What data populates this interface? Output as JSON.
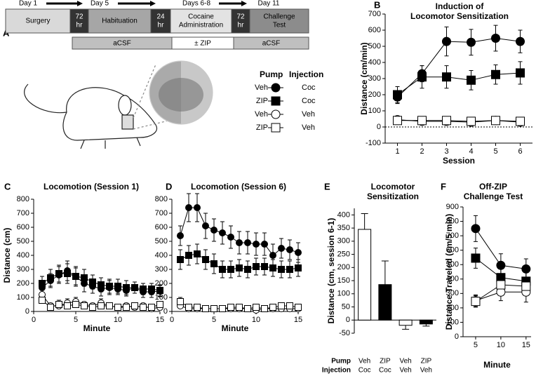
{
  "panel_a": {
    "panel": "A",
    "days": [
      "Day 1",
      "Day 5",
      "Days 6-8",
      "Day 11"
    ],
    "timeline": [
      [
        "Surgery"
      ],
      [
        "72",
        "hr"
      ],
      [
        "Habituation"
      ],
      [
        "24",
        "hr"
      ],
      [
        "Cocaine",
        "Administration"
      ],
      [
        "72",
        "hr"
      ],
      [
        "Challenge",
        "Test"
      ]
    ],
    "infusion": [
      "aCSF",
      "± ZIP",
      "aCSF"
    ]
  },
  "legend": {
    "headers": [
      "Pump",
      "Injection"
    ],
    "entries": [
      {
        "pump": "Veh",
        "injection": "Coc",
        "marker": "circle",
        "color": "#000000"
      },
      {
        "pump": "ZIP",
        "injection": "Coc",
        "marker": "square",
        "color": "#000000"
      },
      {
        "pump": "Veh",
        "injection": "Veh",
        "marker": "circle",
        "color": "#ffffff"
      },
      {
        "pump": "ZIP",
        "injection": "Veh",
        "marker": "square",
        "color": "#ffffff"
      }
    ]
  },
  "chart_data": [
    {
      "type": "line",
      "panel": "B",
      "title": [
        "Induction of",
        "Locomotor Sensitization"
      ],
      "ylabel": "Distance (cm/min)",
      "xlabel": "Session",
      "x": [
        1,
        2,
        3,
        4,
        5,
        6
      ],
      "xlim": [
        0.5,
        6.5
      ],
      "xticks": [
        1,
        2,
        3,
        4,
        5,
        6
      ],
      "ylim": [
        -100,
        700
      ],
      "yticks": [
        -100,
        0,
        100,
        200,
        300,
        400,
        500,
        600,
        700
      ],
      "reference_line": 0,
      "series": [
        {
          "marker": "circle",
          "color": "#000000",
          "values": [
            185,
            330,
            530,
            525,
            550,
            530
          ],
          "errors": [
            40,
            50,
            90,
            80,
            80,
            70
          ]
        },
        {
          "marker": "square",
          "color": "#000000",
          "values": [
            200,
            310,
            310,
            290,
            325,
            335
          ],
          "errors": [
            50,
            70,
            70,
            60,
            60,
            70
          ]
        },
        {
          "marker": "circle",
          "color": "#ffffff",
          "values": [
            45,
            35,
            35,
            30,
            40,
            30
          ],
          "errors": [
            20,
            20,
            20,
            20,
            20,
            20
          ]
        },
        {
          "marker": "square",
          "color": "#ffffff",
          "values": [
            40,
            40,
            40,
            35,
            40,
            35
          ],
          "errors": [
            20,
            20,
            20,
            20,
            20,
            20
          ]
        }
      ]
    },
    {
      "type": "line",
      "panel": "C",
      "title": [
        "Locomotion (Session 1)"
      ],
      "ylabel": "Distance (cm)",
      "xlabel": "Minute",
      "x": [
        1,
        2,
        3,
        4,
        5,
        6,
        7,
        8,
        9,
        10,
        11,
        12,
        13,
        14,
        15
      ],
      "xlim": [
        0,
        15
      ],
      "xticks": [
        0,
        5,
        10,
        15
      ],
      "ylim": [
        0,
        800
      ],
      "yticks": [
        0,
        100,
        200,
        300,
        400,
        500,
        600,
        700,
        800
      ],
      "series": [
        {
          "marker": "circle",
          "color": "#000000",
          "values": [
            170,
            220,
            260,
            290,
            250,
            200,
            180,
            160,
            170,
            160,
            150,
            170,
            140,
            140,
            145
          ],
          "errors": [
            40,
            50,
            60,
            70,
            70,
            60,
            50,
            50,
            50,
            40,
            40,
            40,
            40,
            40,
            40
          ]
        },
        {
          "marker": "square",
          "color": "#000000",
          "values": [
            200,
            240,
            270,
            270,
            250,
            240,
            210,
            190,
            180,
            180,
            170,
            170,
            160,
            160,
            150
          ],
          "errors": [
            50,
            60,
            60,
            70,
            60,
            60,
            50,
            50,
            50,
            50,
            50,
            40,
            40,
            40,
            40
          ]
        },
        {
          "marker": "circle",
          "color": "#ffffff",
          "values": [
            120,
            40,
            40,
            60,
            70,
            50,
            40,
            60,
            40,
            30,
            40,
            30,
            40,
            20,
            30
          ],
          "errors": [
            30,
            20,
            20,
            30,
            30,
            20,
            20,
            30,
            20,
            20,
            20,
            20,
            20,
            20,
            20
          ]
        },
        {
          "marker": "square",
          "color": "#ffffff",
          "values": [
            80,
            30,
            50,
            40,
            50,
            40,
            30,
            40,
            40,
            30,
            30,
            40,
            30,
            30,
            50
          ],
          "errors": [
            20,
            20,
            30,
            20,
            20,
            20,
            20,
            20,
            20,
            20,
            20,
            20,
            20,
            20,
            20
          ]
        }
      ]
    },
    {
      "type": "line",
      "panel": "D",
      "title": [
        "Locomotion (Session 6)"
      ],
      "xlabel": "Minute",
      "x": [
        1,
        2,
        3,
        4,
        5,
        6,
        7,
        8,
        9,
        10,
        11,
        12,
        13,
        14,
        15
      ],
      "xlim": [
        0,
        15
      ],
      "xticks": [
        0,
        5,
        10,
        15
      ],
      "ylim": [
        0,
        800
      ],
      "yticks": [
        0,
        100,
        200,
        300,
        400,
        500,
        600,
        700,
        800
      ],
      "series": [
        {
          "marker": "circle",
          "color": "#000000",
          "values": [
            540,
            740,
            740,
            610,
            580,
            560,
            530,
            490,
            490,
            480,
            480,
            400,
            450,
            440,
            420
          ],
          "errors": [
            70,
            100,
            100,
            90,
            80,
            80,
            80,
            80,
            80,
            80,
            80,
            80,
            70,
            70,
            70
          ]
        },
        {
          "marker": "square",
          "color": "#000000",
          "values": [
            370,
            400,
            410,
            370,
            340,
            300,
            300,
            310,
            300,
            320,
            320,
            310,
            300,
            300,
            310
          ],
          "errors": [
            70,
            70,
            70,
            70,
            70,
            60,
            60,
            60,
            60,
            60,
            60,
            60,
            60,
            60,
            60
          ]
        },
        {
          "marker": "circle",
          "color": "#ffffff",
          "values": [
            40,
            20,
            20,
            20,
            20,
            20,
            20,
            20,
            20,
            10,
            20,
            20,
            20,
            20,
            20
          ],
          "errors": [
            15,
            15,
            15,
            15,
            15,
            15,
            15,
            15,
            15,
            15,
            15,
            15,
            15,
            15,
            15
          ]
        },
        {
          "marker": "square",
          "color": "#ffffff",
          "values": [
            70,
            30,
            30,
            20,
            20,
            20,
            30,
            30,
            20,
            30,
            20,
            30,
            40,
            40,
            30
          ],
          "errors": [
            30,
            20,
            20,
            20,
            20,
            20,
            20,
            20,
            20,
            20,
            20,
            20,
            20,
            20,
            20
          ]
        }
      ]
    },
    {
      "type": "bar",
      "panel": "E",
      "title": [
        "Locomotor",
        "Sensitization"
      ],
      "ylabel": "Distance (cm, session 6-1)",
      "category_rows": [
        "Pump",
        "Injection"
      ],
      "categories": [
        "Veh",
        "ZIP",
        "Veh",
        "ZIP"
      ],
      "categories_row2": [
        "Coc",
        "Coc",
        "Veh",
        "Veh"
      ],
      "values": [
        345,
        135,
        -20,
        -15
      ],
      "errors": [
        60,
        90,
        15,
        8
      ],
      "colors": [
        "#ffffff",
        "#000000",
        "#ffffff",
        "#000000"
      ],
      "ylim": [
        -50,
        425
      ],
      "yticks": [
        -50,
        0,
        50,
        100,
        150,
        200,
        250,
        300,
        350,
        400
      ]
    },
    {
      "type": "line",
      "panel": "F",
      "title": [
        "Off-ZIP",
        "Challenge Test"
      ],
      "ylabel": "Distance Traveled (cm/5 min)",
      "xlabel": "Minute",
      "x": [
        5,
        10,
        15
      ],
      "xlim": [
        2.5,
        16
      ],
      "xticks": [
        5,
        10,
        15
      ],
      "ylim": [
        0,
        900
      ],
      "yticks": [
        0,
        100,
        200,
        300,
        400,
        500,
        600,
        700,
        800,
        900
      ],
      "series": [
        {
          "marker": "circle",
          "color": "#000000",
          "values": [
            750,
            495,
            470
          ],
          "errors": [
            90,
            80,
            70
          ]
        },
        {
          "marker": "square",
          "color": "#000000",
          "values": [
            545,
            410,
            385
          ],
          "errors": [
            70,
            60,
            60
          ]
        },
        {
          "marker": "circle",
          "color": "#ffffff",
          "values": [
            250,
            310,
            310
          ],
          "errors": [
            40,
            60,
            70
          ]
        },
        {
          "marker": "square",
          "color": "#ffffff",
          "values": [
            245,
            360,
            350
          ],
          "errors": [
            40,
            50,
            60
          ]
        }
      ]
    }
  ]
}
